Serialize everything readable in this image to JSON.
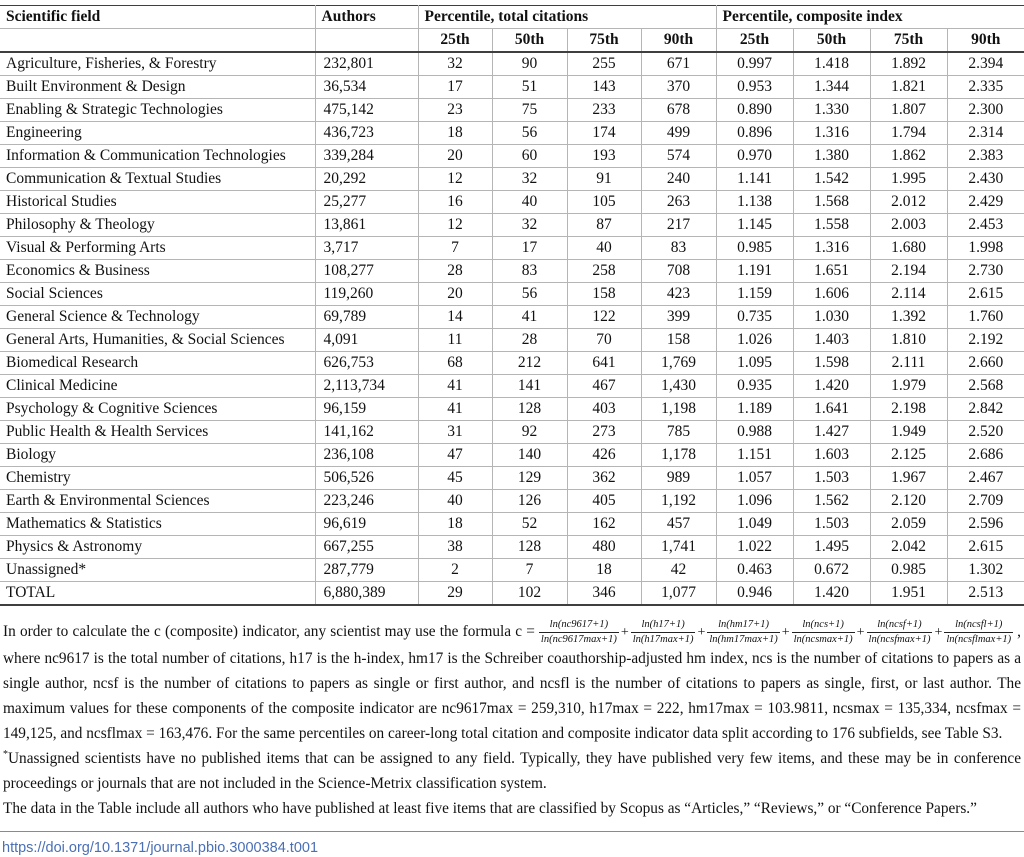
{
  "table": {
    "columns": {
      "field": "Scientific field",
      "authors": "Authors",
      "citations_group": "Percentile, total citations",
      "composite_group": "Percentile, composite index",
      "percentiles": [
        "25th",
        "50th",
        "75th",
        "90th"
      ]
    },
    "rows": [
      {
        "field": "Agriculture, Fisheries, & Forestry",
        "authors": "232,801",
        "citations": [
          "32",
          "90",
          "255",
          "671"
        ],
        "composite": [
          "0.997",
          "1.418",
          "1.892",
          "2.394"
        ]
      },
      {
        "field": "Built Environment & Design",
        "authors": "36,534",
        "citations": [
          "17",
          "51",
          "143",
          "370"
        ],
        "composite": [
          "0.953",
          "1.344",
          "1.821",
          "2.335"
        ]
      },
      {
        "field": "Enabling & Strategic Technologies",
        "authors": "475,142",
        "citations": [
          "23",
          "75",
          "233",
          "678"
        ],
        "composite": [
          "0.890",
          "1.330",
          "1.807",
          "2.300"
        ]
      },
      {
        "field": "Engineering",
        "authors": "436,723",
        "citations": [
          "18",
          "56",
          "174",
          "499"
        ],
        "composite": [
          "0.896",
          "1.316",
          "1.794",
          "2.314"
        ]
      },
      {
        "field": "Information & Communication Technologies",
        "authors": "339,284",
        "citations": [
          "20",
          "60",
          "193",
          "574"
        ],
        "composite": [
          "0.970",
          "1.380",
          "1.862",
          "2.383"
        ]
      },
      {
        "field": "Communication & Textual Studies",
        "authors": "20,292",
        "citations": [
          "12",
          "32",
          "91",
          "240"
        ],
        "composite": [
          "1.141",
          "1.542",
          "1.995",
          "2.430"
        ]
      },
      {
        "field": "Historical Studies",
        "authors": "25,277",
        "citations": [
          "16",
          "40",
          "105",
          "263"
        ],
        "composite": [
          "1.138",
          "1.568",
          "2.012",
          "2.429"
        ]
      },
      {
        "field": "Philosophy & Theology",
        "authors": "13,861",
        "citations": [
          "12",
          "32",
          "87",
          "217"
        ],
        "composite": [
          "1.145",
          "1.558",
          "2.003",
          "2.453"
        ]
      },
      {
        "field": "Visual & Performing Arts",
        "authors": "3,717",
        "citations": [
          "7",
          "17",
          "40",
          "83"
        ],
        "composite": [
          "0.985",
          "1.316",
          "1.680",
          "1.998"
        ]
      },
      {
        "field": "Economics & Business",
        "authors": "108,277",
        "citations": [
          "28",
          "83",
          "258",
          "708"
        ],
        "composite": [
          "1.191",
          "1.651",
          "2.194",
          "2.730"
        ]
      },
      {
        "field": "Social Sciences",
        "authors": "119,260",
        "citations": [
          "20",
          "56",
          "158",
          "423"
        ],
        "composite": [
          "1.159",
          "1.606",
          "2.114",
          "2.615"
        ]
      },
      {
        "field": "General Science & Technology",
        "authors": "69,789",
        "citations": [
          "14",
          "41",
          "122",
          "399"
        ],
        "composite": [
          "0.735",
          "1.030",
          "1.392",
          "1.760"
        ]
      },
      {
        "field": "General Arts, Humanities, & Social Sciences",
        "authors": "4,091",
        "citations": [
          "11",
          "28",
          "70",
          "158"
        ],
        "composite": [
          "1.026",
          "1.403",
          "1.810",
          "2.192"
        ]
      },
      {
        "field": "Biomedical Research",
        "authors": "626,753",
        "citations": [
          "68",
          "212",
          "641",
          "1,769"
        ],
        "composite": [
          "1.095",
          "1.598",
          "2.111",
          "2.660"
        ]
      },
      {
        "field": "Clinical Medicine",
        "authors": "2,113,734",
        "citations": [
          "41",
          "141",
          "467",
          "1,430"
        ],
        "composite": [
          "0.935",
          "1.420",
          "1.979",
          "2.568"
        ]
      },
      {
        "field": "Psychology & Cognitive Sciences",
        "authors": "96,159",
        "citations": [
          "41",
          "128",
          "403",
          "1,198"
        ],
        "composite": [
          "1.189",
          "1.641",
          "2.198",
          "2.842"
        ]
      },
      {
        "field": "Public Health & Health Services",
        "authors": "141,162",
        "citations": [
          "31",
          "92",
          "273",
          "785"
        ],
        "composite": [
          "0.988",
          "1.427",
          "1.949",
          "2.520"
        ]
      },
      {
        "field": "Biology",
        "authors": "236,108",
        "citations": [
          "47",
          "140",
          "426",
          "1,178"
        ],
        "composite": [
          "1.151",
          "1.603",
          "2.125",
          "2.686"
        ]
      },
      {
        "field": "Chemistry",
        "authors": "506,526",
        "citations": [
          "45",
          "129",
          "362",
          "989"
        ],
        "composite": [
          "1.057",
          "1.503",
          "1.967",
          "2.467"
        ]
      },
      {
        "field": "Earth & Environmental Sciences",
        "authors": "223,246",
        "citations": [
          "40",
          "126",
          "405",
          "1,192"
        ],
        "composite": [
          "1.096",
          "1.562",
          "2.120",
          "2.709"
        ]
      },
      {
        "field": "Mathematics & Statistics",
        "authors": "96,619",
        "citations": [
          "18",
          "52",
          "162",
          "457"
        ],
        "composite": [
          "1.049",
          "1.503",
          "2.059",
          "2.596"
        ]
      },
      {
        "field": "Physics & Astronomy",
        "authors": "667,255",
        "citations": [
          "38",
          "128",
          "480",
          "1,741"
        ],
        "composite": [
          "1.022",
          "1.495",
          "2.042",
          "2.615"
        ]
      },
      {
        "field": "Unassigned*",
        "authors": "287,779",
        "citations": [
          "2",
          "7",
          "18",
          "42"
        ],
        "composite": [
          "0.463",
          "0.672",
          "0.985",
          "1.302"
        ]
      },
      {
        "field": "TOTAL",
        "authors": "6,880,389",
        "citations": [
          "29",
          "102",
          "346",
          "1,077"
        ],
        "composite": [
          "0.946",
          "1.420",
          "1.951",
          "2.513"
        ]
      }
    ]
  },
  "footnotes": {
    "formula_intro": "In order to calculate the c (composite) indicator, any scientist may use the formula c =",
    "formula_terms": [
      {
        "num": "ln(nc9617+1)",
        "den": "ln(nc9617max+1)"
      },
      {
        "num": "ln(h17+1)",
        "den": "ln(h17max+1)"
      },
      {
        "num": "ln(hm17+1)",
        "den": "ln(hm17max+1)"
      },
      {
        "num": "ln(ncs+1)",
        "den": "ln(ncsmax+1)"
      },
      {
        "num": "ln(ncsf+1)",
        "den": "ln(ncsfmax+1)"
      },
      {
        "num": "ln(ncsfl+1)",
        "den": "ln(ncsflmax+1)"
      }
    ],
    "formula_outro": ", where nc9617 is the total number of citations, h17 is the h-index, hm17 is the Schreiber coauthorship-adjusted hm index, ncs is the number of citations to papers as a single author, ncsf is the number of citations to papers as single or first author, and ncsfl is the number of citations to papers as single, first, or last author. The maximum values for these components of the composite indicator are nc9617max = 259,310, h17max = 222, hm17max = 103.9811, ncsmax = 135,334, ncsfmax = 149,125, and ncsflmax = 163,476. For the same percentiles on career-long total citation and composite indicator data split according to 176 subfields, see Table S3.",
    "unassigned_marker": "*",
    "unassigned_text": "Unassigned scientists have no published items that can be assigned to any field. Typically, they have published very few items, and these may be in conference proceedings or journals that are not included in the Science-Metrix classification system.",
    "data_note": "The data in the Table include all authors who have published at least five items that are classified by Scopus as “Articles,” “Reviews,” or “Conference Papers.”"
  },
  "doi": "https://doi.org/10.1371/journal.pbio.3000384.t001"
}
